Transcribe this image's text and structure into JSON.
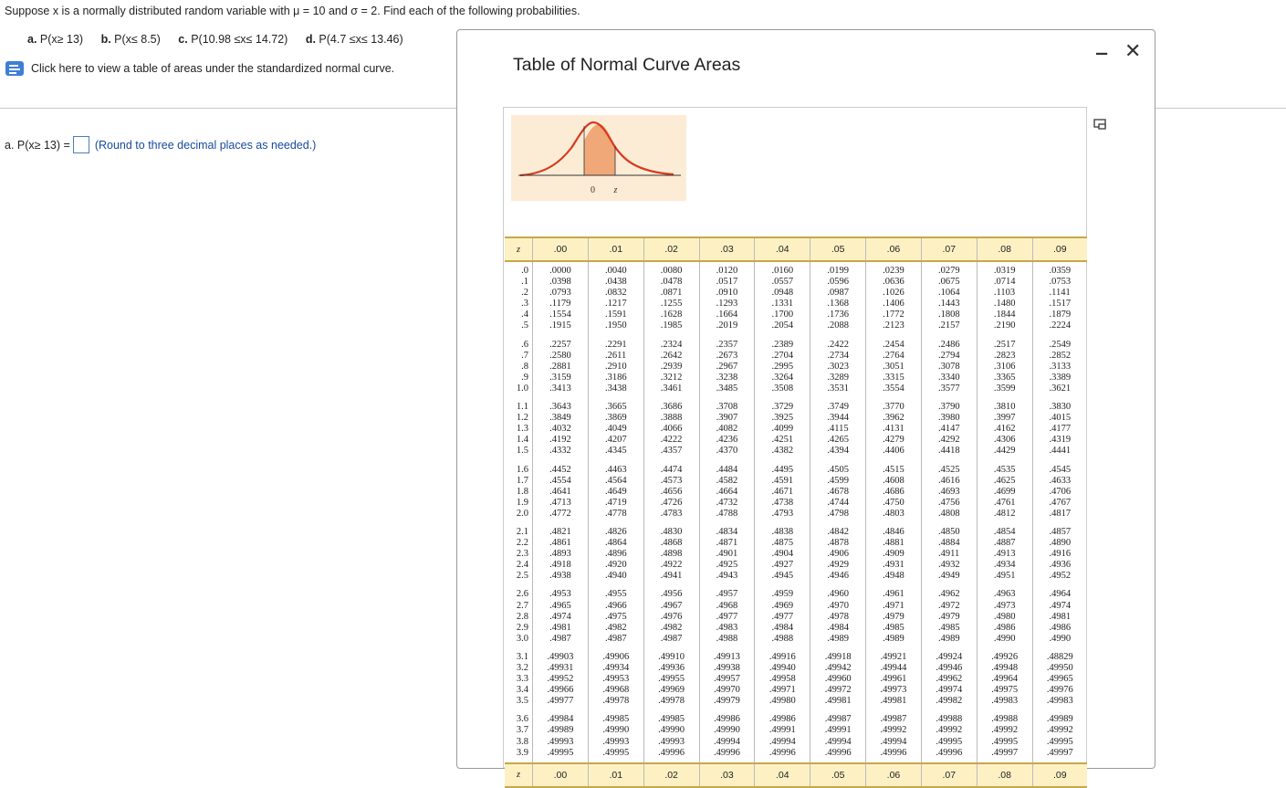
{
  "question": {
    "text": "Suppose x is a normally distributed random variable with μ = 10 and σ = 2. Find each of the following probabilities.",
    "parts": [
      {
        "label": "a.",
        "expr": "P(x≥ 13)"
      },
      {
        "label": "b.",
        "expr": "P(x≤ 8.5)"
      },
      {
        "label": "c.",
        "expr": "P(10.98 ≤x≤ 14.72)"
      },
      {
        "label": "d.",
        "expr": "P(4.7 ≤x≤ 13.46)"
      }
    ],
    "link_text": "Click here to view a table of areas under the standardized normal curve."
  },
  "answer": {
    "prefix": "a. P(x≥ 13) =",
    "value": "",
    "hint": "(Round to three decimal places as needed.)"
  },
  "dialog": {
    "title": "Table of Normal Curve Areas",
    "minimize_label": "‒",
    "close_label": "✕"
  },
  "curve": {
    "label_zero": "0",
    "label_z": "z"
  },
  "table": {
    "z_header": "z",
    "headers": [
      ".00",
      ".01",
      ".02",
      ".03",
      ".04",
      ".05",
      ".06",
      ".07",
      ".08",
      ".09"
    ],
    "groups": [
      {
        "z": [
          ".0",
          ".1",
          ".2",
          ".3",
          ".4",
          ".5"
        ],
        "cols": [
          [
            ".0000",
            ".0398",
            ".0793",
            ".1179",
            ".1554",
            ".1915"
          ],
          [
            ".0040",
            ".0438",
            ".0832",
            ".1217",
            ".1591",
            ".1950"
          ],
          [
            ".0080",
            ".0478",
            ".0871",
            ".1255",
            ".1628",
            ".1985"
          ],
          [
            ".0120",
            ".0517",
            ".0910",
            ".1293",
            ".1664",
            ".2019"
          ],
          [
            ".0160",
            ".0557",
            ".0948",
            ".1331",
            ".1700",
            ".2054"
          ],
          [
            ".0199",
            ".0596",
            ".0987",
            ".1368",
            ".1736",
            ".2088"
          ],
          [
            ".0239",
            ".0636",
            ".1026",
            ".1406",
            ".1772",
            ".2123"
          ],
          [
            ".0279",
            ".0675",
            ".1064",
            ".1443",
            ".1808",
            ".2157"
          ],
          [
            ".0319",
            ".0714",
            ".1103",
            ".1480",
            ".1844",
            ".2190"
          ],
          [
            ".0359",
            ".0753",
            ".1141",
            ".1517",
            ".1879",
            ".2224"
          ]
        ]
      },
      {
        "z": [
          ".6",
          ".7",
          ".8",
          ".9",
          "1.0"
        ],
        "cols": [
          [
            ".2257",
            ".2580",
            ".2881",
            ".3159",
            ".3413"
          ],
          [
            ".2291",
            ".2611",
            ".2910",
            ".3186",
            ".3438"
          ],
          [
            ".2324",
            ".2642",
            ".2939",
            ".3212",
            ".3461"
          ],
          [
            ".2357",
            ".2673",
            ".2967",
            ".3238",
            ".3485"
          ],
          [
            ".2389",
            ".2704",
            ".2995",
            ".3264",
            ".3508"
          ],
          [
            ".2422",
            ".2734",
            ".3023",
            ".3289",
            ".3531"
          ],
          [
            ".2454",
            ".2764",
            ".3051",
            ".3315",
            ".3554"
          ],
          [
            ".2486",
            ".2794",
            ".3078",
            ".3340",
            ".3577"
          ],
          [
            ".2517",
            ".2823",
            ".3106",
            ".3365",
            ".3599"
          ],
          [
            ".2549",
            ".2852",
            ".3133",
            ".3389",
            ".3621"
          ]
        ]
      },
      {
        "z": [
          "1.1",
          "1.2",
          "1.3",
          "1.4",
          "1.5"
        ],
        "cols": [
          [
            ".3643",
            ".3849",
            ".4032",
            ".4192",
            ".4332"
          ],
          [
            ".3665",
            ".3869",
            ".4049",
            ".4207",
            ".4345"
          ],
          [
            ".3686",
            ".3888",
            ".4066",
            ".4222",
            ".4357"
          ],
          [
            ".3708",
            ".3907",
            ".4082",
            ".4236",
            ".4370"
          ],
          [
            ".3729",
            ".3925",
            ".4099",
            ".4251",
            ".4382"
          ],
          [
            ".3749",
            ".3944",
            ".4115",
            ".4265",
            ".4394"
          ],
          [
            ".3770",
            ".3962",
            ".4131",
            ".4279",
            ".4406"
          ],
          [
            ".3790",
            ".3980",
            ".4147",
            ".4292",
            ".4418"
          ],
          [
            ".3810",
            ".3997",
            ".4162",
            ".4306",
            ".4429"
          ],
          [
            ".3830",
            ".4015",
            ".4177",
            ".4319",
            ".4441"
          ]
        ]
      },
      {
        "z": [
          "1.6",
          "1.7",
          "1.8",
          "1.9",
          "2.0"
        ],
        "cols": [
          [
            ".4452",
            ".4554",
            ".4641",
            ".4713",
            ".4772"
          ],
          [
            ".4463",
            ".4564",
            ".4649",
            ".4719",
            ".4778"
          ],
          [
            ".4474",
            ".4573",
            ".4656",
            ".4726",
            ".4783"
          ],
          [
            ".4484",
            ".4582",
            ".4664",
            ".4732",
            ".4788"
          ],
          [
            ".4495",
            ".4591",
            ".4671",
            ".4738",
            ".4793"
          ],
          [
            ".4505",
            ".4599",
            ".4678",
            ".4744",
            ".4798"
          ],
          [
            ".4515",
            ".4608",
            ".4686",
            ".4750",
            ".4803"
          ],
          [
            ".4525",
            ".4616",
            ".4693",
            ".4756",
            ".4808"
          ],
          [
            ".4535",
            ".4625",
            ".4699",
            ".4761",
            ".4812"
          ],
          [
            ".4545",
            ".4633",
            ".4706",
            ".4767",
            ".4817"
          ]
        ]
      },
      {
        "z": [
          "2.1",
          "2.2",
          "2.3",
          "2.4",
          "2.5"
        ],
        "cols": [
          [
            ".4821",
            ".4861",
            ".4893",
            ".4918",
            ".4938"
          ],
          [
            ".4826",
            ".4864",
            ".4896",
            ".4920",
            ".4940"
          ],
          [
            ".4830",
            ".4868",
            ".4898",
            ".4922",
            ".4941"
          ],
          [
            ".4834",
            ".4871",
            ".4901",
            ".4925",
            ".4943"
          ],
          [
            ".4838",
            ".4875",
            ".4904",
            ".4927",
            ".4945"
          ],
          [
            ".4842",
            ".4878",
            ".4906",
            ".4929",
            ".4946"
          ],
          [
            ".4846",
            ".4881",
            ".4909",
            ".4931",
            ".4948"
          ],
          [
            ".4850",
            ".4884",
            ".4911",
            ".4932",
            ".4949"
          ],
          [
            ".4854",
            ".4887",
            ".4913",
            ".4934",
            ".4951"
          ],
          [
            ".4857",
            ".4890",
            ".4916",
            ".4936",
            ".4952"
          ]
        ]
      },
      {
        "z": [
          "2.6",
          "2.7",
          "2.8",
          "2.9",
          "3.0"
        ],
        "cols": [
          [
            ".4953",
            ".4965",
            ".4974",
            ".4981",
            ".4987"
          ],
          [
            ".4955",
            ".4966",
            ".4975",
            ".4982",
            ".4987"
          ],
          [
            ".4956",
            ".4967",
            ".4976",
            ".4982",
            ".4987"
          ],
          [
            ".4957",
            ".4968",
            ".4977",
            ".4983",
            ".4988"
          ],
          [
            ".4959",
            ".4969",
            ".4977",
            ".4984",
            ".4988"
          ],
          [
            ".4960",
            ".4970",
            ".4978",
            ".4984",
            ".4989"
          ],
          [
            ".4961",
            ".4971",
            ".4979",
            ".4985",
            ".4989"
          ],
          [
            ".4962",
            ".4972",
            ".4979",
            ".4985",
            ".4989"
          ],
          [
            ".4963",
            ".4973",
            ".4980",
            ".4986",
            ".4990"
          ],
          [
            ".4964",
            ".4974",
            ".4981",
            ".4986",
            ".4990"
          ]
        ]
      },
      {
        "z": [
          "3.1",
          "3.2",
          "3.3",
          "3.4",
          "3.5"
        ],
        "cols": [
          [
            ".49903",
            ".49931",
            ".49952",
            ".49966",
            ".49977"
          ],
          [
            ".49906",
            ".49934",
            ".49953",
            ".49968",
            ".49978"
          ],
          [
            ".49910",
            ".49936",
            ".49955",
            ".49969",
            ".49978"
          ],
          [
            ".49913",
            ".49938",
            ".49957",
            ".49970",
            ".49979"
          ],
          [
            ".49916",
            ".49940",
            ".49958",
            ".49971",
            ".49980"
          ],
          [
            ".49918",
            ".49942",
            ".49960",
            ".49972",
            ".49981"
          ],
          [
            ".49921",
            ".49944",
            ".49961",
            ".49973",
            ".49981"
          ],
          [
            ".49924",
            ".49946",
            ".49962",
            ".49974",
            ".49982"
          ],
          [
            ".49926",
            ".49948",
            ".49964",
            ".49975",
            ".49983"
          ],
          [
            ".48829",
            ".49950",
            ".49965",
            ".49976",
            ".49983"
          ]
        ]
      },
      {
        "z": [
          "3.6",
          "3.7",
          "3.8",
          "3.9"
        ],
        "cols": [
          [
            ".49984",
            ".49989",
            ".49993",
            ".49995"
          ],
          [
            ".49985",
            ".49990",
            ".49993",
            ".49995"
          ],
          [
            ".49985",
            ".49990",
            ".49993",
            ".49996"
          ],
          [
            ".49986",
            ".49990",
            ".49994",
            ".49996"
          ],
          [
            ".49986",
            ".49991",
            ".49994",
            ".49996"
          ],
          [
            ".49987",
            ".49991",
            ".49994",
            ".49996"
          ],
          [
            ".49987",
            ".49992",
            ".49994",
            ".49996"
          ],
          [
            ".49988",
            ".49992",
            ".49995",
            ".49996"
          ],
          [
            ".49988",
            ".49992",
            ".49995",
            ".49997"
          ],
          [
            ".49989",
            ".49992",
            ".49995",
            ".49997"
          ]
        ]
      }
    ],
    "footer_headers": [
      ".00",
      ".01",
      ".02",
      ".03",
      ".04",
      ".05",
      ".06",
      ".07",
      ".08",
      ".09"
    ]
  }
}
